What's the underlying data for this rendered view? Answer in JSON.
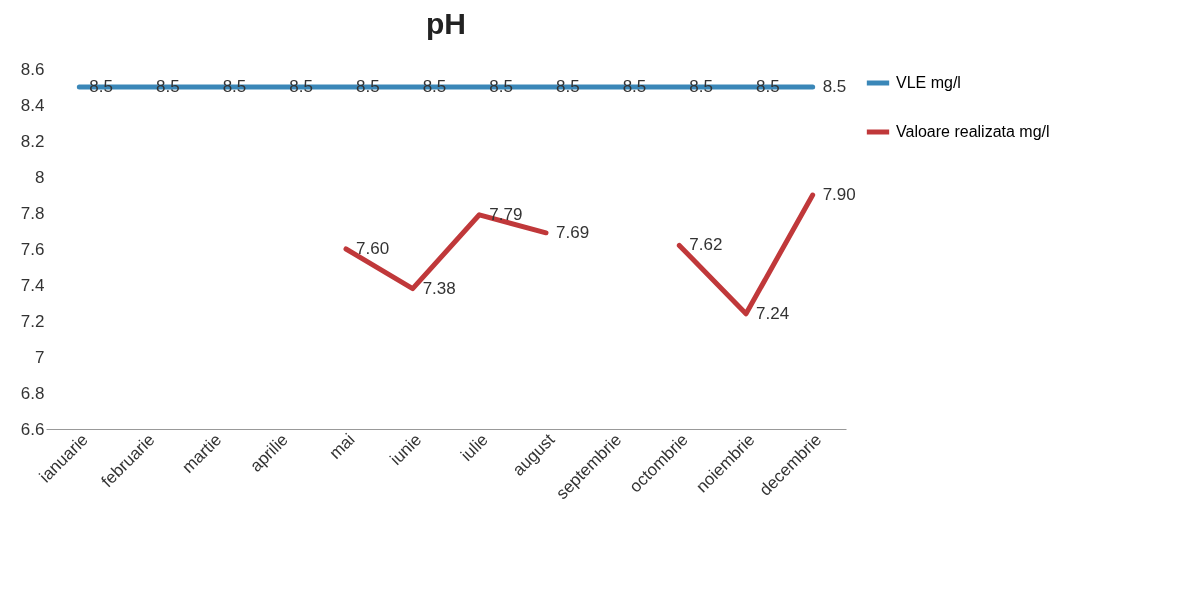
{
  "chart_data": {
    "type": "line",
    "title": "pH",
    "categories": [
      "ianuarie",
      "februarie",
      "martie",
      "aprilie",
      "mai",
      "iunie",
      "iulie",
      "august",
      "septembrie",
      "octombrie",
      "noiembrie",
      "decembrie"
    ],
    "series": [
      {
        "name": "VLE mg/l",
        "color": "#3a87b8",
        "values": [
          8.5,
          8.5,
          8.5,
          8.5,
          8.5,
          8.5,
          8.5,
          8.5,
          8.5,
          8.5,
          8.5,
          8.5
        ],
        "value_labels": [
          "8.5",
          "8.5",
          "8.5",
          "8.5",
          "8.5",
          "8.5",
          "8.5",
          "8.5",
          "8.5",
          "8.5",
          "8.5",
          "8.5"
        ]
      },
      {
        "name": "Valoare realizata mg/l",
        "color": "#c0383a",
        "values": [
          null,
          null,
          null,
          null,
          7.6,
          7.38,
          7.79,
          7.69,
          null,
          7.62,
          7.24,
          7.9
        ],
        "value_labels": [
          null,
          null,
          null,
          null,
          "7.60",
          "7.38",
          "7.79",
          "7.69",
          null,
          "7.62",
          "7.24",
          "7.90"
        ]
      }
    ],
    "ylim": [
      6.6,
      8.6
    ],
    "yticks": [
      6.6,
      6.8,
      7,
      7.2,
      7.4,
      7.6,
      7.8,
      8,
      8.2,
      8.4,
      8.6
    ],
    "grid": false,
    "legend": "right",
    "marker": "none",
    "line_style": "solid"
  }
}
